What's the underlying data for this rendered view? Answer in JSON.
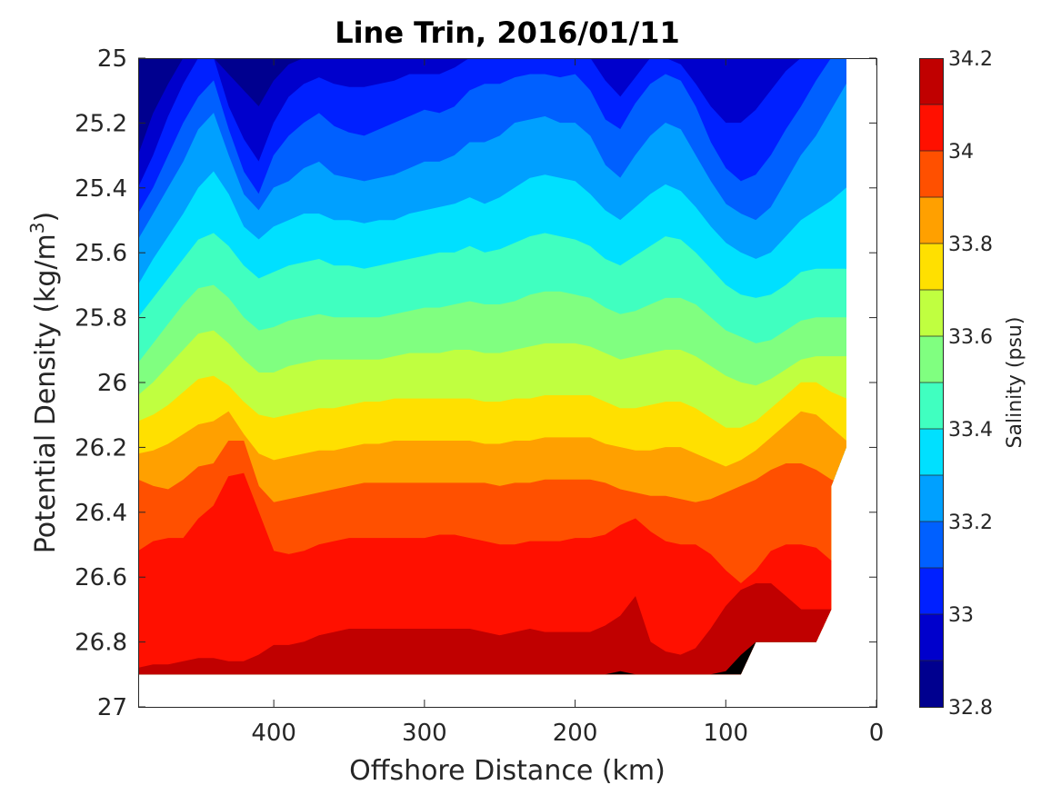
{
  "chart_data": {
    "type": "heatmap",
    "title": "Line Trin, 2016/01/11",
    "xlabel": "Offshore Distance (km)",
    "ylabel_main": "Potential Density (kg/m",
    "ylabel_sup": "3",
    "ylabel_close": ")",
    "xlim": [
      490,
      0
    ],
    "x_reversed": true,
    "ylim": [
      25.0,
      27.0
    ],
    "y_reversed": true,
    "x_ticks": [
      400,
      300,
      200,
      100,
      0
    ],
    "x_tick_labels": [
      "400",
      "300",
      "200",
      "100",
      "0"
    ],
    "y_ticks": [
      25.0,
      25.2,
      25.4,
      25.6,
      25.8,
      26.0,
      26.2,
      26.4,
      26.6,
      26.8,
      27.0
    ],
    "y_tick_labels": [
      "25",
      "25.2",
      "25.4",
      "25.6",
      "25.8",
      "26",
      "26.2",
      "26.4",
      "26.6",
      "26.8",
      "27"
    ],
    "colorbar": {
      "label": "Salinity (psu)",
      "range": [
        32.8,
        34.2
      ],
      "level_step": 0.1,
      "ticks": [
        34.2,
        34.0,
        33.8,
        33.6,
        33.4,
        33.2,
        33.0,
        32.8
      ],
      "tick_labels": [
        "34.2",
        "34",
        "33.8",
        "33.6",
        "33.4",
        "33.2",
        "33",
        "32.8"
      ],
      "colors": [
        "#00008F",
        "#0000CC",
        "#0020FF",
        "#0060FF",
        "#00A0FF",
        "#00E0FF",
        "#40FFC0",
        "#80FF80",
        "#C0FF40",
        "#FFE000",
        "#FFA000",
        "#FF5000",
        "#FF1000",
        "#C00000"
      ]
    },
    "contours": {
      "x": [
        490,
        480,
        470,
        460,
        450,
        440,
        430,
        420,
        410,
        400,
        390,
        380,
        370,
        360,
        350,
        340,
        330,
        320,
        310,
        300,
        290,
        280,
        270,
        260,
        250,
        240,
        230,
        220,
        210,
        200,
        190,
        180,
        170,
        160,
        150,
        140,
        130,
        120,
        110,
        100,
        90,
        80,
        70,
        60,
        50,
        40,
        30,
        20
      ],
      "levels": [
        {
          "value": 32.9,
          "y": [
            25.3,
            25.17,
            25.08,
            25.0,
            25.0,
            25.0,
            25.05,
            25.1,
            25.15,
            25.07,
            25.02,
            25.0,
            25.0,
            25.0,
            25.0,
            25.0,
            25.0,
            25.0,
            25.0,
            25.0,
            25.0,
            25.0,
            25.0,
            25.0,
            25.0,
            25.0,
            25.0,
            25.0,
            25.0,
            25.0,
            25.0,
            25.0,
            25.0,
            25.0,
            25.0,
            25.0,
            25.0,
            25.0,
            25.0,
            25.0,
            25.0,
            25.0,
            25.0,
            25.0,
            25.0,
            25.0,
            25.0,
            25.0
          ]
        },
        {
          "value": 33.0,
          "y": [
            25.4,
            25.3,
            25.18,
            25.08,
            25.0,
            25.0,
            25.15,
            25.25,
            25.32,
            25.2,
            25.12,
            25.08,
            25.06,
            25.08,
            25.09,
            25.09,
            25.08,
            25.07,
            25.05,
            25.05,
            25.05,
            25.03,
            25.0,
            25.0,
            25.0,
            25.0,
            25.0,
            25.0,
            25.0,
            25.0,
            25.0,
            25.07,
            25.12,
            25.06,
            25.0,
            25.0,
            25.02,
            25.08,
            25.15,
            25.2,
            25.2,
            25.16,
            25.1,
            25.04,
            25.0,
            25.0,
            25.0,
            25.0
          ]
        },
        {
          "value": 33.1,
          "y": [
            25.48,
            25.4,
            25.3,
            25.2,
            25.12,
            25.07,
            25.22,
            25.35,
            25.42,
            25.3,
            25.24,
            25.2,
            25.17,
            25.21,
            25.23,
            25.24,
            25.22,
            25.2,
            25.18,
            25.16,
            25.17,
            25.15,
            25.1,
            25.08,
            25.08,
            25.06,
            25.05,
            25.05,
            25.06,
            25.05,
            25.1,
            25.19,
            25.22,
            25.14,
            25.08,
            25.05,
            25.07,
            25.15,
            25.26,
            25.34,
            25.38,
            25.36,
            25.3,
            25.22,
            25.15,
            25.07,
            25.0,
            25.0
          ]
        },
        {
          "value": 33.2,
          "y": [
            25.56,
            25.48,
            25.4,
            25.32,
            25.22,
            25.17,
            25.3,
            25.42,
            25.47,
            25.4,
            25.38,
            25.34,
            25.32,
            25.36,
            25.37,
            25.38,
            25.37,
            25.36,
            25.34,
            25.32,
            25.32,
            25.3,
            25.26,
            25.26,
            25.24,
            25.2,
            25.19,
            25.18,
            25.2,
            25.2,
            25.24,
            25.33,
            25.37,
            25.3,
            25.24,
            25.2,
            25.22,
            25.3,
            25.38,
            25.45,
            25.48,
            25.5,
            25.46,
            25.38,
            25.3,
            25.24,
            25.16,
            25.08
          ]
        },
        {
          "value": 33.3,
          "y": [
            25.7,
            25.62,
            25.55,
            25.48,
            25.4,
            25.35,
            25.42,
            25.52,
            25.56,
            25.52,
            25.5,
            25.48,
            25.48,
            25.5,
            25.5,
            25.51,
            25.5,
            25.5,
            25.48,
            25.47,
            25.46,
            25.45,
            25.43,
            25.45,
            25.43,
            25.4,
            25.37,
            25.36,
            25.37,
            25.38,
            25.42,
            25.47,
            25.5,
            25.46,
            25.42,
            25.39,
            25.41,
            25.46,
            25.52,
            25.57,
            25.6,
            25.62,
            25.6,
            25.55,
            25.5,
            25.47,
            25.44,
            25.4
          ]
        },
        {
          "value": 33.4,
          "y": [
            25.8,
            25.74,
            25.68,
            25.62,
            25.56,
            25.54,
            25.58,
            25.64,
            25.68,
            25.66,
            25.64,
            25.63,
            25.62,
            25.64,
            25.64,
            25.65,
            25.64,
            25.63,
            25.62,
            25.61,
            25.6,
            25.6,
            25.58,
            25.6,
            25.59,
            25.57,
            25.55,
            25.54,
            25.55,
            25.56,
            25.58,
            25.62,
            25.64,
            25.61,
            25.58,
            25.55,
            25.56,
            25.6,
            25.65,
            25.7,
            25.73,
            25.74,
            25.73,
            25.7,
            25.66,
            25.65,
            25.65,
            25.65
          ]
        },
        {
          "value": 33.5,
          "y": [
            25.94,
            25.88,
            25.82,
            25.76,
            25.71,
            25.7,
            25.74,
            25.8,
            25.84,
            25.83,
            25.81,
            25.8,
            25.79,
            25.8,
            25.8,
            25.8,
            25.8,
            25.79,
            25.78,
            25.77,
            25.77,
            25.76,
            25.75,
            25.76,
            25.76,
            25.75,
            25.73,
            25.72,
            25.72,
            25.73,
            25.74,
            25.77,
            25.79,
            25.78,
            25.76,
            25.74,
            25.74,
            25.76,
            25.8,
            25.84,
            25.86,
            25.88,
            25.87,
            25.84,
            25.81,
            25.8,
            25.8,
            25.8
          ]
        },
        {
          "value": 33.6,
          "y": [
            26.04,
            26.0,
            25.95,
            25.9,
            25.85,
            25.84,
            25.88,
            25.93,
            25.97,
            25.97,
            25.95,
            25.94,
            25.93,
            25.93,
            25.93,
            25.93,
            25.93,
            25.92,
            25.91,
            25.91,
            25.91,
            25.9,
            25.9,
            25.91,
            25.91,
            25.9,
            25.89,
            25.88,
            25.88,
            25.88,
            25.89,
            25.91,
            25.93,
            25.92,
            25.91,
            25.9,
            25.9,
            25.92,
            25.95,
            25.98,
            26.0,
            26.01,
            25.99,
            25.96,
            25.93,
            25.92,
            25.92,
            25.92
          ]
        },
        {
          "value": 33.7,
          "y": [
            26.12,
            26.1,
            26.07,
            26.03,
            25.99,
            25.98,
            26.01,
            26.06,
            26.1,
            26.11,
            26.1,
            26.09,
            26.08,
            26.08,
            26.07,
            26.06,
            26.06,
            26.05,
            26.05,
            26.05,
            26.05,
            26.05,
            26.05,
            26.06,
            26.06,
            26.05,
            26.05,
            26.04,
            26.04,
            26.04,
            26.04,
            26.06,
            26.08,
            26.08,
            26.07,
            26.06,
            26.06,
            26.08,
            26.11,
            26.14,
            26.14,
            26.12,
            26.08,
            26.04,
            26.0,
            26.0,
            26.03,
            26.05
          ]
        },
        {
          "value": 33.8,
          "y": [
            26.22,
            26.21,
            26.19,
            26.16,
            26.13,
            26.12,
            26.09,
            26.16,
            26.22,
            26.24,
            26.23,
            26.22,
            26.21,
            26.21,
            26.2,
            26.19,
            26.19,
            26.18,
            26.18,
            26.18,
            26.18,
            26.18,
            26.18,
            26.19,
            26.19,
            26.18,
            26.18,
            26.17,
            26.17,
            26.17,
            26.17,
            26.19,
            26.2,
            26.21,
            26.21,
            26.2,
            26.2,
            26.22,
            26.24,
            26.26,
            26.24,
            26.21,
            26.17,
            26.13,
            26.09,
            26.1,
            26.14,
            26.18
          ]
        },
        {
          "value": 33.9,
          "y": [
            26.3,
            26.32,
            26.33,
            26.3,
            26.26,
            26.25,
            26.18,
            26.18,
            26.32,
            26.37,
            26.36,
            26.35,
            26.34,
            26.33,
            26.32,
            26.31,
            26.31,
            26.31,
            26.31,
            26.31,
            26.31,
            26.31,
            26.31,
            26.31,
            26.32,
            26.31,
            26.31,
            26.3,
            26.3,
            26.3,
            26.3,
            26.31,
            26.33,
            26.34,
            26.35,
            26.35,
            26.36,
            26.37,
            26.36,
            26.34,
            26.32,
            26.3,
            26.27,
            26.25,
            26.25,
            26.27,
            26.3,
            26.32
          ]
        },
        {
          "value": 34.0,
          "y": [
            26.52,
            26.49,
            26.48,
            26.48,
            26.42,
            26.38,
            26.29,
            26.28,
            26.4,
            26.52,
            26.53,
            26.52,
            26.5,
            26.49,
            26.48,
            26.48,
            26.48,
            26.48,
            26.48,
            26.48,
            26.47,
            26.47,
            26.48,
            26.49,
            26.5,
            26.5,
            26.49,
            26.49,
            26.49,
            26.48,
            26.48,
            26.47,
            26.44,
            26.42,
            26.46,
            26.49,
            26.5,
            26.5,
            26.53,
            26.58,
            26.62,
            26.58,
            26.52,
            26.5,
            26.5,
            26.51,
            26.55,
            26.6
          ]
        },
        {
          "value": 34.1,
          "y": [
            26.88,
            26.87,
            26.87,
            26.86,
            26.85,
            26.85,
            26.86,
            26.86,
            26.84,
            26.81,
            26.81,
            26.8,
            26.78,
            26.77,
            26.76,
            26.76,
            26.76,
            26.76,
            26.76,
            26.76,
            26.76,
            26.76,
            26.76,
            26.77,
            26.78,
            26.77,
            26.76,
            26.77,
            26.77,
            26.77,
            26.77,
            26.75,
            26.72,
            26.66,
            26.8,
            26.83,
            26.84,
            26.82,
            26.76,
            26.69,
            26.64,
            26.62,
            26.62,
            26.66,
            26.7,
            26.7,
            26.7,
            26.7
          ]
        },
        {
          "value": 34.2,
          "y": [
            26.9,
            26.9,
            26.9,
            26.9,
            26.9,
            26.9,
            26.9,
            26.9,
            26.9,
            26.9,
            26.9,
            26.9,
            26.9,
            26.9,
            26.9,
            26.9,
            26.9,
            26.9,
            26.9,
            26.9,
            26.9,
            26.9,
            26.9,
            26.9,
            26.9,
            26.9,
            26.9,
            26.9,
            26.9,
            26.9,
            26.9,
            26.9,
            26.89,
            26.9,
            26.9,
            26.9,
            26.9,
            26.9,
            26.9,
            26.89,
            26.84,
            26.8,
            26.8,
            26.8,
            26.8,
            26.8,
            26.8,
            26.8
          ]
        }
      ],
      "data_extent": {
        "bottom": [
          [
            490,
            26.9
          ],
          [
            90,
            26.9
          ],
          [
            80,
            26.8
          ],
          [
            40,
            26.8
          ],
          [
            30,
            26.7
          ],
          [
            30,
            26.32
          ],
          [
            20,
            26.2
          ],
          [
            20,
            25.0
          ]
        ]
      }
    }
  }
}
